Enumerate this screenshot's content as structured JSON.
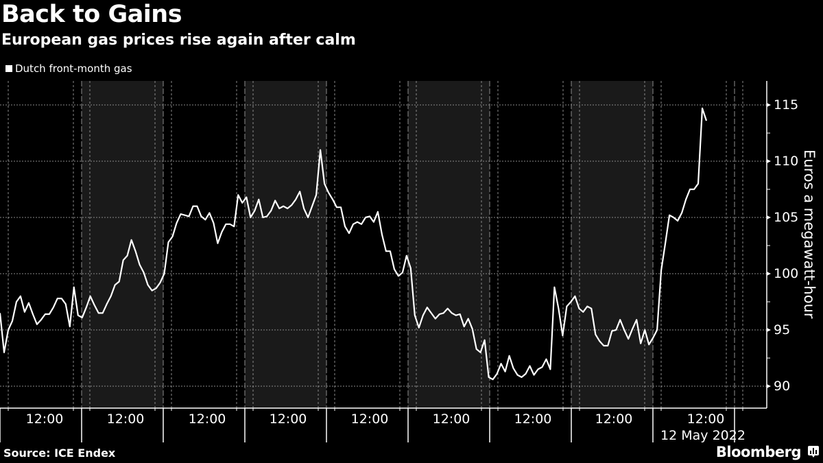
{
  "header": {
    "title": "Back to Gains",
    "subtitle": "European gas prices rise again after calm"
  },
  "legend": {
    "items": [
      {
        "label": "Dutch front-month gas",
        "color": "#ffffff"
      }
    ]
  },
  "axes": {
    "y_label": "Euros a megawatt-hour",
    "y_ticks": [
      "115",
      "110",
      "105",
      "100",
      "95",
      "90"
    ],
    "x_ticks": [
      "12:00",
      "12:00",
      "12:00",
      "12:00",
      "12:00",
      "12:00",
      "12:00",
      "12:00",
      "12:00"
    ],
    "x_date_label": "12 May 2022"
  },
  "footer": {
    "source": "Source: ICE Endex",
    "brand": "Bloomberg"
  },
  "colors": {
    "background": "#000000",
    "shaded_band": "#1a1a1a",
    "line": "#ffffff",
    "grid": "#8a8a8a"
  },
  "chart_data": {
    "type": "line",
    "title": "Back to Gains",
    "subtitle": "European gas prices rise again after calm",
    "xlabel": "",
    "ylabel": "Euros a megawatt-hour",
    "ylim": [
      88,
      117
    ],
    "yticks": [
      90,
      95,
      100,
      105,
      110,
      115
    ],
    "grid": true,
    "legend_position": "top-left",
    "x_tick_labels": [
      "12:00",
      "12:00",
      "12:00",
      "12:00",
      "12:00",
      "12:00",
      "12:00",
      "12:00",
      "12:00"
    ],
    "x_annotation": "12 May 2022",
    "shaded_days": [
      2,
      4,
      6,
      8
    ],
    "series": [
      {
        "name": "Dutch front-month gas",
        "values": [
          96.5,
          93.0,
          95.0,
          95.8,
          97.5,
          98.0,
          96.6,
          97.4,
          96.4,
          95.5,
          95.9,
          96.4,
          96.4,
          97.0,
          97.8,
          97.8,
          97.3,
          95.3,
          98.8,
          96.3,
          96.1,
          97.0,
          98.0,
          97.2,
          96.5,
          96.5,
          97.3,
          98.0,
          99.0,
          99.3,
          101.2,
          101.6,
          103.0,
          102.0,
          100.8,
          100.1,
          99.0,
          98.5,
          98.7,
          99.2,
          100.0,
          102.8,
          103.3,
          104.5,
          105.3,
          105.2,
          105.1,
          106.0,
          106.0,
          105.1,
          104.8,
          105.4,
          104.5,
          102.7,
          103.7,
          104.4,
          104.4,
          104.2,
          107.0,
          106.3,
          106.8,
          105.0,
          105.6,
          106.6,
          105.0,
          105.1,
          105.6,
          106.5,
          105.8,
          106.0,
          105.8,
          106.1,
          106.6,
          107.3,
          105.8,
          105.0,
          106.0,
          107.0,
          111.0,
          108.0,
          107.2,
          106.6,
          105.9,
          105.9,
          104.2,
          103.6,
          104.4,
          104.6,
          104.4,
          105.0,
          105.1,
          104.6,
          105.5,
          103.5,
          102.0,
          102.0,
          100.4,
          99.8,
          100.1,
          101.6,
          100.5,
          96.3,
          95.2,
          96.3,
          97.0,
          96.5,
          96.0,
          96.4,
          96.5,
          96.9,
          96.5,
          96.3,
          96.4,
          95.3,
          96.0,
          95.1,
          93.3,
          93.0,
          94.1,
          90.8,
          90.6,
          91.1,
          92.0,
          91.3,
          92.7,
          91.6,
          91.0,
          90.8,
          91.1,
          91.8,
          91.0,
          91.5,
          91.7,
          92.4,
          91.5,
          98.8,
          96.9,
          94.5,
          97.1,
          97.5,
          98.0,
          96.9,
          96.6,
          97.1,
          96.9,
          94.6,
          94.0,
          93.6,
          93.6,
          94.9,
          95.0,
          95.9,
          95.0,
          94.2,
          95.1,
          95.9,
          93.8,
          95.0,
          93.7,
          94.3,
          95.0,
          100.3,
          102.7,
          105.2,
          105.0,
          104.7,
          105.4,
          106.6,
          107.5,
          107.5,
          108.0,
          114.7,
          113.6
        ]
      }
    ]
  }
}
